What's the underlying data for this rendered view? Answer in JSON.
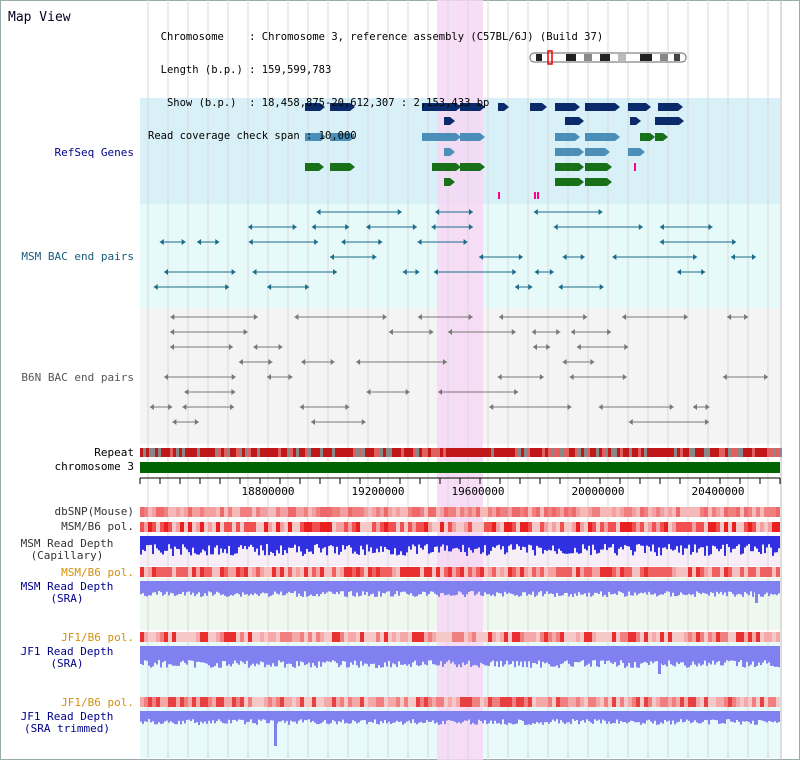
{
  "header": {
    "title": "Map View",
    "info_lines": [
      "  Chromosome    : Chromosome 3, reference assembly (C57BL/6J) (Build 37)",
      "  Length (b.p.) : 159,599,783",
      "   Show (b.p.)  : 18,458,875-20,612,307 : 2,153,433 bp",
      "Read coverage check span : 10,000"
    ]
  },
  "tracks": {
    "refseq": {
      "label": "RefSeq Genes",
      "color": "#00008b"
    },
    "msm_bac": {
      "label": "MSM BAC end pairs",
      "color": "#1a5a7a"
    },
    "b6n_bac": {
      "label": "B6N BAC end pairs",
      "color": "#555555"
    },
    "repeat": {
      "label": "Repeat"
    },
    "chromosome": {
      "label": "chromosome 3",
      "color": "#006400"
    },
    "dbsnp": {
      "label": "dbSNP(Mouse)"
    },
    "msm_pol": {
      "label": "MSM/B6 pol."
    },
    "msm_depth_cap": {
      "label1": "MSM Read Depth",
      "label2": "(Capillary)"
    },
    "msm_pol2": {
      "label": "MSM/B6 pol.",
      "color": "#d4900a"
    },
    "msm_depth_sra": {
      "label1": "MSM Read Depth",
      "label2": "(SRA)"
    },
    "jf1_pol": {
      "label": "JF1/B6 pol."
    },
    "jf1_depth_sra": {
      "label1": "JF1 Read Depth",
      "label2": "(SRA)"
    },
    "jf1_pol2": {
      "label": "JF1/B6 pol."
    },
    "jf1_depth_trim": {
      "label1": "JF1 Read Depth",
      "label2": "(SRA trimmed)"
    }
  },
  "axis": {
    "ticks": [
      "18800000",
      "19200000",
      "19600000",
      "20000000",
      "20400000"
    ]
  },
  "colors": {
    "refseq_band": "#d8f0f8",
    "msm_band": "#e6fafa",
    "b6n_band": "#f4f4f4",
    "highlight": "#f7d7f4",
    "depth_blue": "#3030e0",
    "depth_light": "#8080f0"
  }
}
